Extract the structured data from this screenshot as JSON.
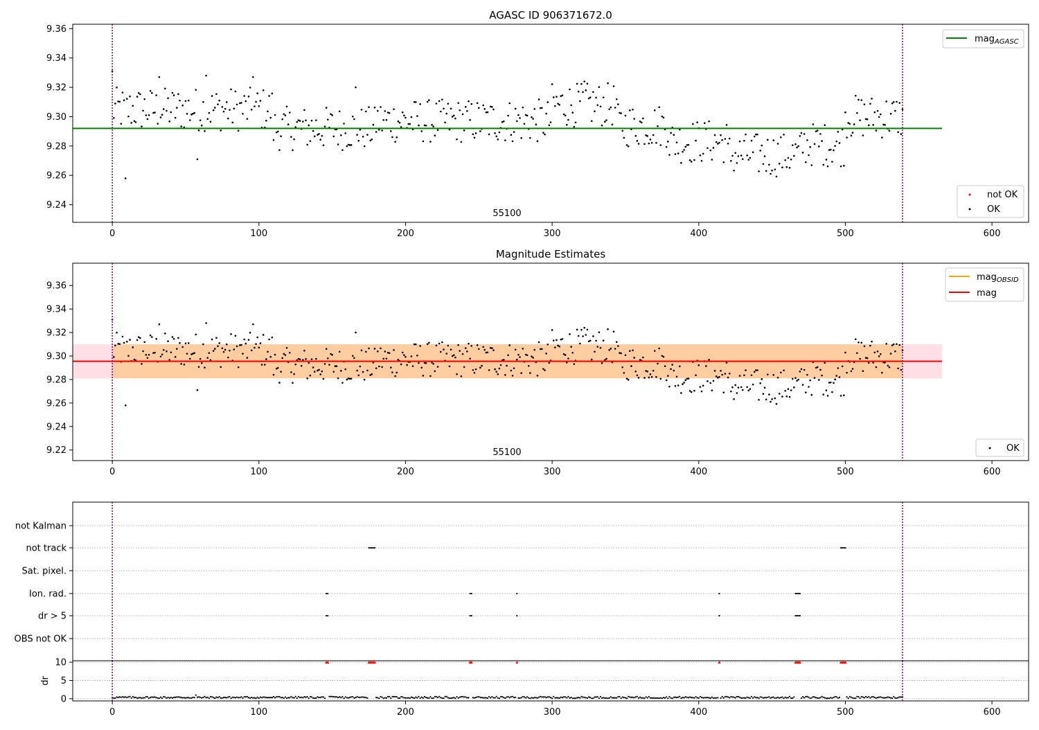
{
  "colors": {
    "ok": "#000000",
    "not_ok": "#ff0000",
    "mag_agasc": "#008000",
    "mag_obsid": "#ffa500",
    "mag": "#ff0000",
    "band_obsid": "#ffa500",
    "band_mag": "#ffc0cb",
    "vline": "#800080"
  },
  "chart_data": [
    {
      "type": "scatter",
      "title": "AGASC ID 906371672.0",
      "xlim": [
        -27,
        625
      ],
      "ylim": [
        9.228,
        9.363
      ],
      "xticks": [
        "0",
        "100",
        "200",
        "300",
        "400",
        "500",
        "600"
      ],
      "yticks": [
        "9.24",
        "9.26",
        "9.28",
        "9.30",
        "9.32",
        "9.34",
        "9.36"
      ],
      "annotation": "55100",
      "obs_boundaries": [
        0,
        539
      ],
      "reference_line": {
        "name": "mag_AGASC",
        "label_main": "mag",
        "label_sub": "AGASC",
        "y": 9.292,
        "x_range": [
          -27,
          566
        ]
      },
      "series": [
        {
          "name": "not OK",
          "values": []
        },
        {
          "name": "OK",
          "values": "see ok_points"
        }
      ],
      "legends": {
        "lines": [
          "mag_AGASC"
        ],
        "points": [
          "not OK",
          "OK"
        ]
      }
    },
    {
      "type": "scatter",
      "title": "Magnitude Estimates",
      "xlim": [
        -27,
        625
      ],
      "ylim": [
        9.211,
        9.379
      ],
      "xticks": [
        "0",
        "100",
        "200",
        "300",
        "400",
        "500",
        "600"
      ],
      "yticks": [
        "9.22",
        "9.24",
        "9.26",
        "9.28",
        "9.30",
        "9.32",
        "9.34",
        "9.36"
      ],
      "annotation": "55100",
      "obs_boundaries": [
        0,
        539
      ],
      "lines": [
        {
          "name": "mag_OBSID",
          "label_main": "mag",
          "label_sub": "OBSID",
          "y": 9.2955,
          "x_range": [
            -27,
            566
          ]
        },
        {
          "name": "mag",
          "label_main": "mag",
          "label_sub": "",
          "y": 9.2955,
          "x_range": [
            -27,
            566
          ]
        }
      ],
      "bands": [
        {
          "name": "mag_OBSID band",
          "y0": 9.281,
          "y1": 9.31,
          "x_range": [
            0,
            539
          ]
        },
        {
          "name": "mag band",
          "y0": 9.281,
          "y1": 9.31,
          "x_range": [
            -27,
            566
          ]
        }
      ],
      "series": [
        {
          "name": "OK",
          "values": "see ok_points"
        }
      ]
    },
    {
      "type": "scatter",
      "title": "",
      "xlim": [
        -27,
        625
      ],
      "xticks": [
        "0",
        "100",
        "200",
        "300",
        "400",
        "500",
        "600"
      ],
      "flag_rows": [
        "not Kalman",
        "not track",
        "Sat. pixel.",
        "Ion. rad.",
        "dr > 5",
        "OBS not OK"
      ],
      "flags": {
        "not Kalman": [],
        "not track": [
          175,
          176,
          177,
          178,
          179,
          497,
          498,
          499,
          500
        ],
        "Sat. pixel.": [],
        "Ion. rad.": [
          146,
          147,
          244,
          245,
          276,
          414,
          466,
          467,
          468,
          469
        ],
        "dr > 5": [
          146,
          147,
          244,
          245,
          276,
          414,
          466,
          467,
          468,
          469
        ],
        "OBS not OK": []
      },
      "obs_boundaries": [
        0,
        539
      ]
    },
    {
      "type": "scatter",
      "ylabel": "dr",
      "xlim": [
        -27,
        625
      ],
      "ylim": [
        -0.6,
        10.4
      ],
      "yticks": [
        "0",
        "5",
        "10"
      ],
      "xticks": [
        "0",
        "100",
        "200",
        "300",
        "400",
        "500",
        "600"
      ],
      "saturated_value": 10,
      "saturated_x": [
        146,
        147,
        175,
        176,
        177,
        178,
        179,
        244,
        245,
        276,
        414,
        466,
        467,
        468,
        469,
        497,
        498,
        499,
        500
      ],
      "obs_boundaries": [
        0,
        539
      ]
    }
  ]
}
